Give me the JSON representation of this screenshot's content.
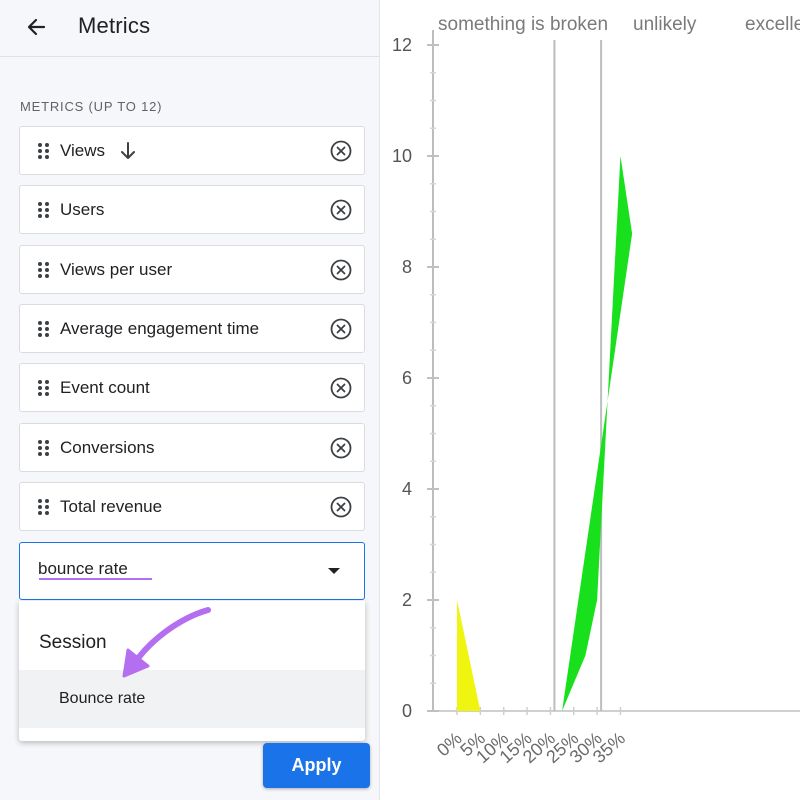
{
  "header": {
    "title": "Metrics"
  },
  "section_label": "METRICS (UP TO 12)",
  "metrics": [
    {
      "label": "Views"
    },
    {
      "label": "Users"
    },
    {
      "label": "Views per user"
    },
    {
      "label": "Average engagement time"
    },
    {
      "label": "Event count"
    },
    {
      "label": "Conversions"
    },
    {
      "label": "Total revenue"
    }
  ],
  "search": {
    "value": "bounce rate"
  },
  "dropdown": {
    "group": "Session",
    "option": "Bounce rate"
  },
  "apply_label": "Apply",
  "colors": {
    "accent": "#1a73e8",
    "highlight": "#b46ef0"
  },
  "chart_data": {
    "type": "area",
    "zones": [
      {
        "label": "something is broken"
      },
      {
        "label": "unlikely"
      },
      {
        "label": "excelle"
      }
    ],
    "zone_dividers": [
      20,
      30
    ],
    "x_ticks": [
      "0%",
      "5%",
      "10%",
      "15%",
      "20%",
      "25%",
      "30%",
      "35%"
    ],
    "y_ticks": [
      0,
      2,
      4,
      6,
      8,
      10,
      12
    ],
    "ylim": [
      0,
      12
    ],
    "series": [
      {
        "x": [
          0,
          0,
          5
        ],
        "y": [
          0,
          2,
          0
        ]
      },
      {
        "x": [
          22.5,
          27.5,
          30,
          35,
          37.5
        ],
        "y": [
          0,
          1,
          2,
          10,
          8.6
        ]
      }
    ]
  }
}
